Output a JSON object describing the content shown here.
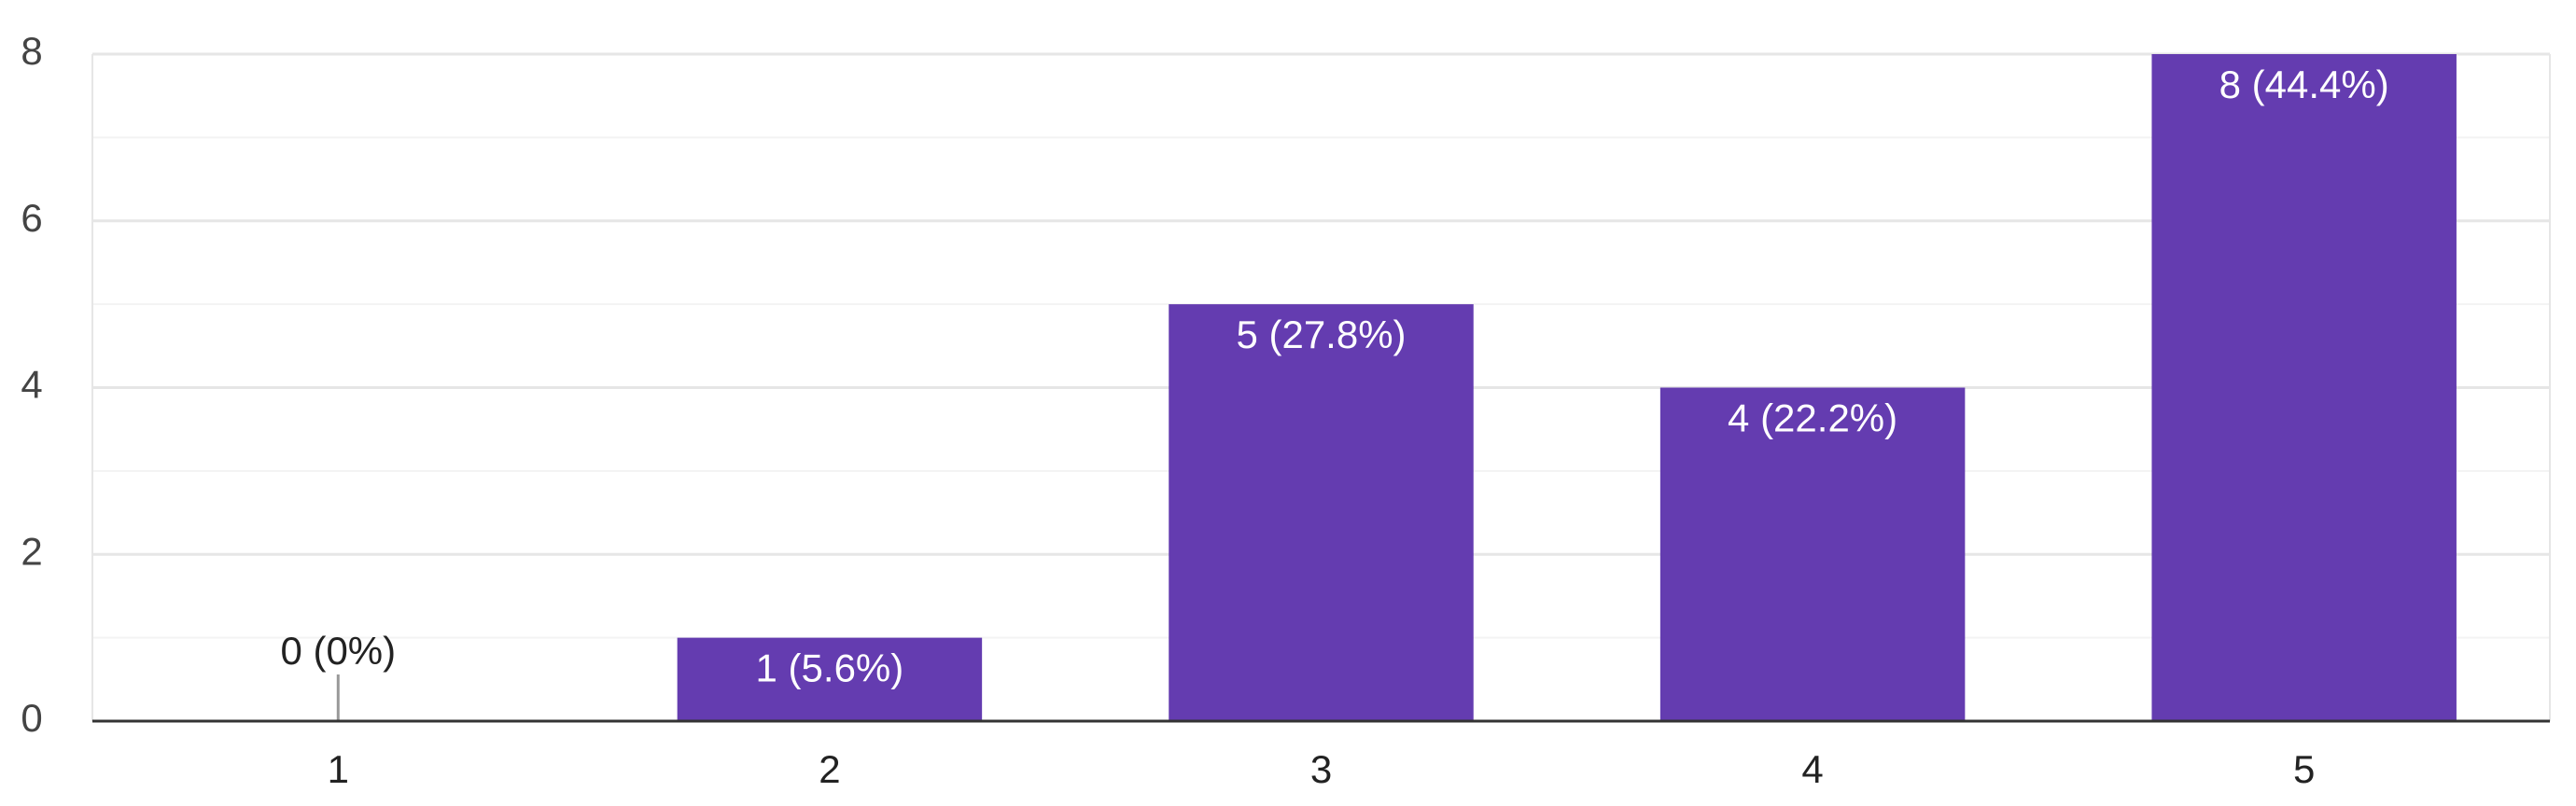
{
  "chart_data": {
    "type": "bar",
    "categories": [
      "1",
      "2",
      "3",
      "4",
      "5"
    ],
    "values": [
      0,
      1,
      5,
      4,
      8
    ],
    "value_labels": [
      "0 (0%)",
      "1 (5.6%)",
      "5 (27.8%)",
      "4 (22.2%)",
      "8 (44.4%)"
    ],
    "color": "#643cb0",
    "ylim": [
      0,
      8
    ],
    "yticks": [
      0,
      2,
      4,
      6,
      8
    ],
    "minor_yticks": [
      1,
      3,
      5,
      7
    ],
    "grid": true
  }
}
